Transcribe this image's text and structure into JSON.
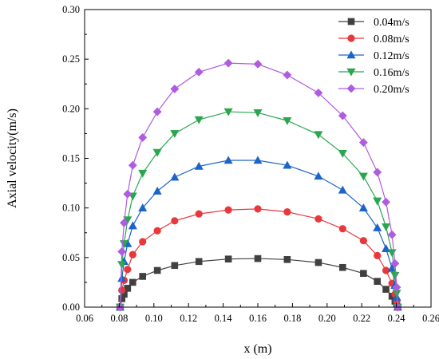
{
  "chart_data": {
    "type": "line",
    "title": "",
    "xlabel": "x (m)",
    "ylabel": "Axial velocity(m/s)",
    "xlim": [
      0.06,
      0.26
    ],
    "ylim": [
      0.0,
      0.3
    ],
    "xticks": [
      0.06,
      0.08,
      0.1,
      0.12,
      0.14,
      0.16,
      0.18,
      0.2,
      0.22,
      0.24,
      0.26
    ],
    "yticks": [
      0.0,
      0.05,
      0.1,
      0.15,
      0.2,
      0.25,
      0.3
    ],
    "xtick_labels": [
      "0.06",
      "0.08",
      "0.10",
      "0.12",
      "0.14",
      "0.16",
      "0.18",
      "0.20",
      "0.22",
      "0.24",
      "0.26"
    ],
    "ytick_labels": [
      "0.00",
      "0.05",
      "0.10",
      "0.15",
      "0.20",
      "0.25",
      "0.30"
    ],
    "grid": false,
    "legend_position": "top-right",
    "series": [
      {
        "name": "0.04m/s",
        "color": "#404040",
        "marker": "square",
        "x": [
          0.0805,
          0.0815,
          0.0828,
          0.0848,
          0.0878,
          0.0935,
          0.102,
          0.112,
          0.126,
          0.143,
          0.16,
          0.177,
          0.195,
          0.209,
          0.221,
          0.229,
          0.234,
          0.2375,
          0.2392,
          0.2402,
          0.2408
        ],
        "y": [
          0.0,
          0.0085,
          0.013,
          0.019,
          0.025,
          0.031,
          0.037,
          0.042,
          0.046,
          0.0485,
          0.049,
          0.048,
          0.045,
          0.04,
          0.034,
          0.026,
          0.018,
          0.011,
          0.006,
          0.003,
          0.0
        ]
      },
      {
        "name": "0.08m/s",
        "color": "#e8383b",
        "marker": "circle",
        "x": [
          0.0805,
          0.0815,
          0.0828,
          0.0848,
          0.0878,
          0.0935,
          0.102,
          0.112,
          0.126,
          0.143,
          0.16,
          0.177,
          0.195,
          0.209,
          0.221,
          0.229,
          0.234,
          0.2375,
          0.2392,
          0.2402,
          0.2408
        ],
        "y": [
          0.0,
          0.017,
          0.027,
          0.038,
          0.053,
          0.066,
          0.077,
          0.087,
          0.094,
          0.098,
          0.099,
          0.096,
          0.089,
          0.079,
          0.067,
          0.052,
          0.037,
          0.024,
          0.013,
          0.006,
          0.0
        ]
      },
      {
        "name": "0.12m/s",
        "color": "#1d64c8",
        "marker": "triangle-up",
        "x": [
          0.0805,
          0.0815,
          0.0828,
          0.0848,
          0.0878,
          0.0935,
          0.102,
          0.112,
          0.126,
          0.143,
          0.16,
          0.177,
          0.195,
          0.209,
          0.221,
          0.229,
          0.234,
          0.2375,
          0.2392,
          0.2402,
          0.2408
        ],
        "y": [
          0.0,
          0.029,
          0.046,
          0.064,
          0.082,
          0.1,
          0.117,
          0.131,
          0.142,
          0.148,
          0.148,
          0.143,
          0.132,
          0.118,
          0.1,
          0.08,
          0.059,
          0.039,
          0.022,
          0.01,
          0.0
        ]
      },
      {
        "name": "0.16m/s",
        "color": "#2aa64f",
        "marker": "triangle-down",
        "x": [
          0.0805,
          0.0815,
          0.0828,
          0.0848,
          0.0878,
          0.0935,
          0.102,
          0.112,
          0.126,
          0.143,
          0.16,
          0.177,
          0.195,
          0.209,
          0.221,
          0.229,
          0.234,
          0.2375,
          0.2392,
          0.2402,
          0.2408
        ],
        "y": [
          0.0,
          0.043,
          0.064,
          0.088,
          0.112,
          0.135,
          0.156,
          0.175,
          0.189,
          0.197,
          0.196,
          0.188,
          0.174,
          0.155,
          0.132,
          0.107,
          0.081,
          0.055,
          0.032,
          0.014,
          0.0
        ]
      },
      {
        "name": "0.20m/s",
        "color": "#b05be0",
        "marker": "diamond",
        "x": [
          0.0805,
          0.0815,
          0.0828,
          0.0848,
          0.0878,
          0.0935,
          0.102,
          0.112,
          0.126,
          0.143,
          0.16,
          0.177,
          0.195,
          0.209,
          0.221,
          0.229,
          0.234,
          0.2375,
          0.2392,
          0.2402,
          0.2408
        ],
        "y": [
          0.0,
          0.056,
          0.085,
          0.114,
          0.143,
          0.171,
          0.197,
          0.22,
          0.237,
          0.246,
          0.245,
          0.234,
          0.216,
          0.193,
          0.166,
          0.136,
          0.106,
          0.073,
          0.044,
          0.02,
          0.0
        ]
      }
    ]
  }
}
